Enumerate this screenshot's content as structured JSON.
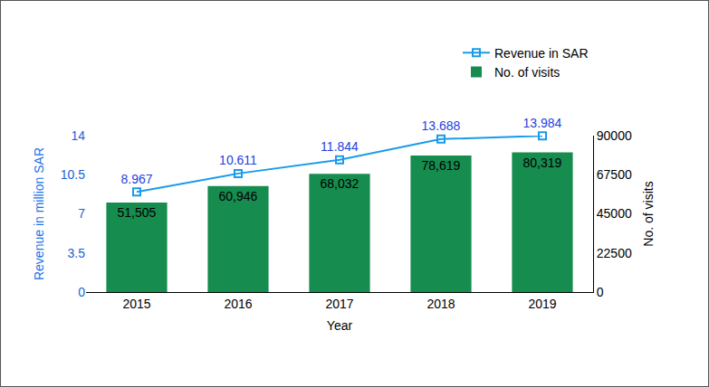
{
  "chart_data": {
    "type": "bar",
    "categories": [
      "2015",
      "2016",
      "2017",
      "2018",
      "2019"
    ],
    "x_label": "Year",
    "y_label": "Revenue in million SAR",
    "y2_label": "No. of visits",
    "ylim": [
      0,
      14
    ],
    "yticks": [
      0,
      3.5,
      7,
      10.5,
      14
    ],
    "y2lim": [
      0,
      90000
    ],
    "y2ticks": [
      0,
      22500,
      45000,
      67500,
      90000
    ],
    "grid": false,
    "legend": "top right",
    "data_labels": true,
    "series": [
      {
        "name": "Revenue in SAR",
        "type": "line",
        "color": "#1a9bea",
        "marker": "square",
        "line_style": "solid",
        "values": [
          8.967,
          10.611,
          11.844,
          13.688,
          13.984
        ]
      },
      {
        "name": "No. of visits",
        "type": "bar",
        "axis": "y2",
        "color": "#168c4f",
        "values": [
          51505,
          60946,
          68032,
          78619,
          80319
        ],
        "value_labels": [
          "51,505",
          "60,946",
          "68,032",
          "78,619",
          "80,319"
        ]
      }
    ]
  }
}
